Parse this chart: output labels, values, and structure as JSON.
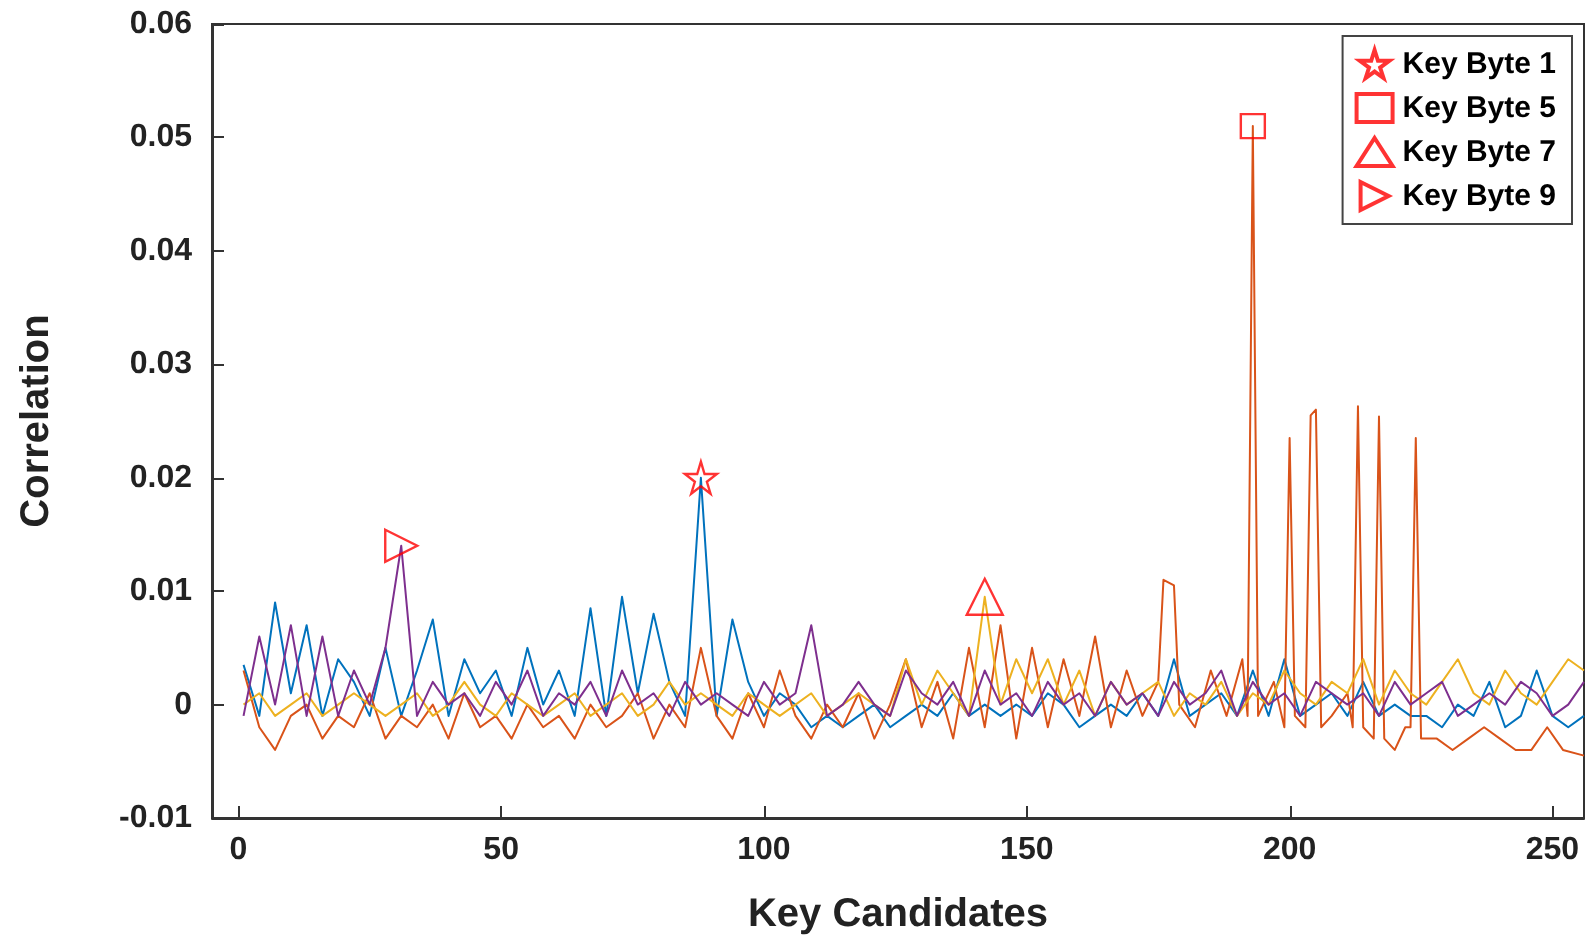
{
  "chart_data": {
    "type": "line",
    "xlabel": "Key Candidates",
    "ylabel": "Correlation",
    "xlim": [
      -5,
      256
    ],
    "xticks": [
      0,
      50,
      100,
      150,
      200,
      250
    ],
    "ylim": [
      -0.01,
      0.06
    ],
    "yticks": [
      -0.01,
      0,
      0.01,
      0.02,
      0.03,
      0.04,
      0.05,
      0.06
    ],
    "grid": false,
    "legend": "top right",
    "series": [
      {
        "type": "line",
        "color": "#0072bd",
        "marker": "none",
        "x": [
          1,
          4,
          7,
          10,
          13,
          16,
          19,
          22,
          25,
          28,
          31,
          34,
          37,
          40,
          43,
          46,
          49,
          52,
          55,
          58,
          61,
          64,
          67,
          70,
          73,
          76,
          79,
          82,
          85,
          88,
          91,
          94,
          97,
          100,
          103,
          106,
          109,
          112,
          115,
          118,
          121,
          124,
          127,
          130,
          133,
          136,
          139,
          142,
          145,
          148,
          151,
          154,
          157,
          160,
          163,
          166,
          169,
          172,
          175,
          178,
          181,
          184,
          187,
          190,
          193,
          196,
          199,
          202,
          205,
          208,
          211,
          214,
          217,
          220,
          223,
          226,
          229,
          232,
          235,
          238,
          241,
          244,
          247,
          250,
          253,
          256
        ],
        "values": [
          0.0035,
          -0.001,
          0.009,
          0.001,
          0.007,
          -0.001,
          0.004,
          0.002,
          -0.001,
          0.005,
          -0.001,
          0.003,
          0.0075,
          -0.001,
          0.004,
          0.001,
          0.003,
          -0.001,
          0.005,
          0,
          0.003,
          -0.001,
          0.0085,
          -0.001,
          0.0095,
          0.001,
          0.008,
          0.002,
          -0.001,
          0.02,
          -0.001,
          0.0075,
          0.002,
          -0.001,
          0.001,
          0,
          -0.002,
          -0.001,
          -0.002,
          -0.001,
          0,
          -0.002,
          -0.001,
          0,
          -0.001,
          0.001,
          -0.001,
          0,
          -0.001,
          0,
          -0.001,
          0.001,
          0,
          -0.002,
          -0.001,
          0,
          -0.001,
          0.001,
          -0.001,
          0.004,
          -0.001,
          0,
          0.001,
          -0.001,
          0.003,
          -0.001,
          0.004,
          -0.001,
          0,
          0.001,
          -0.001,
          0.002,
          -0.001,
          0,
          -0.001,
          -0.001,
          -0.002,
          0,
          -0.001,
          0.002,
          -0.002,
          -0.001,
          0.003,
          -0.001,
          -0.002,
          -0.001
        ]
      },
      {
        "type": "line",
        "color": "#d95319",
        "marker": "none",
        "x": [
          1,
          4,
          7,
          10,
          13,
          16,
          19,
          22,
          25,
          28,
          31,
          34,
          37,
          40,
          43,
          46,
          49,
          52,
          55,
          58,
          61,
          64,
          67,
          70,
          73,
          76,
          79,
          82,
          85,
          88,
          91,
          94,
          97,
          100,
          103,
          106,
          109,
          112,
          115,
          118,
          121,
          124,
          127,
          130,
          133,
          136,
          139,
          142,
          145,
          148,
          151,
          154,
          157,
          160,
          163,
          166,
          169,
          172,
          175,
          176,
          178,
          179,
          182,
          185,
          188,
          191,
          192,
          193,
          194,
          197,
          199,
          200,
          201,
          203,
          204,
          205,
          206,
          208,
          211,
          212,
          213,
          214,
          216,
          217,
          218,
          220,
          222,
          223,
          224,
          225,
          228,
          231,
          234,
          237,
          240,
          243,
          246,
          249,
          252,
          256
        ],
        "values": [
          0.003,
          -0.002,
          -0.004,
          -0.001,
          0,
          -0.003,
          -0.001,
          -0.002,
          0.001,
          -0.003,
          -0.001,
          -0.002,
          0,
          -0.003,
          0.001,
          -0.002,
          -0.001,
          -0.003,
          0,
          -0.002,
          -0.001,
          -0.003,
          0,
          -0.002,
          -0.001,
          0.001,
          -0.003,
          0,
          -0.002,
          0.005,
          -0.001,
          -0.003,
          0.001,
          -0.002,
          0.003,
          -0.001,
          -0.003,
          0,
          -0.002,
          0.001,
          -0.003,
          0,
          0.004,
          -0.002,
          0.002,
          -0.003,
          0.005,
          -0.002,
          0.007,
          -0.003,
          0.005,
          -0.002,
          0.004,
          -0.001,
          0.006,
          -0.002,
          0.003,
          -0.001,
          0.002,
          0.011,
          0.0105,
          0,
          -0.002,
          0.003,
          -0.001,
          0.004,
          -0.001,
          0.051,
          -0.001,
          0.002,
          -0.002,
          0.0235,
          -0.001,
          -0.002,
          0.0255,
          0.026,
          -0.002,
          -0.001,
          0.001,
          -0.002,
          0.0263,
          -0.002,
          -0.003,
          0.0254,
          -0.003,
          -0.004,
          -0.002,
          -0.002,
          0.0235,
          -0.003,
          -0.003,
          -0.004,
          -0.003,
          -0.002,
          -0.003,
          -0.004,
          -0.004,
          -0.002,
          -0.004,
          -0.0045
        ]
      },
      {
        "type": "line",
        "color": "#edb120",
        "marker": "none",
        "x": [
          1,
          4,
          7,
          10,
          13,
          16,
          19,
          22,
          25,
          28,
          31,
          34,
          37,
          40,
          43,
          46,
          49,
          52,
          55,
          58,
          61,
          64,
          67,
          70,
          73,
          76,
          79,
          82,
          85,
          88,
          91,
          94,
          97,
          100,
          103,
          106,
          109,
          112,
          115,
          118,
          121,
          124,
          127,
          130,
          133,
          136,
          139,
          142,
          145,
          148,
          151,
          154,
          157,
          160,
          163,
          166,
          169,
          172,
          175,
          178,
          181,
          184,
          187,
          190,
          193,
          196,
          199,
          202,
          205,
          208,
          211,
          214,
          217,
          220,
          223,
          226,
          229,
          232,
          235,
          238,
          241,
          244,
          247,
          250,
          253,
          256
        ],
        "values": [
          0,
          0.001,
          -0.001,
          0,
          0.001,
          -0.001,
          0,
          0.001,
          0,
          -0.001,
          0,
          0.001,
          -0.001,
          0,
          0.002,
          0,
          -0.001,
          0.001,
          0,
          -0.001,
          0,
          0.001,
          -0.001,
          0,
          0.001,
          -0.001,
          0,
          0.002,
          0,
          0.001,
          0,
          -0.001,
          0.001,
          0,
          -0.001,
          0,
          0.001,
          -0.001,
          0,
          0.001,
          0,
          -0.001,
          0.004,
          0,
          0.003,
          0.001,
          -0.001,
          0.0095,
          0,
          0.004,
          0.001,
          0.004,
          0,
          0.003,
          -0.001,
          0.002,
          0,
          0.001,
          0.002,
          -0.001,
          0.001,
          0,
          0.002,
          -0.001,
          0.001,
          0,
          0.003,
          0.001,
          0,
          0.002,
          0.001,
          0.004,
          0,
          0.003,
          0.001,
          0,
          0.002,
          0.004,
          0.001,
          0,
          0.003,
          0.001,
          0,
          0.002,
          0.004,
          0.003
        ]
      },
      {
        "type": "line",
        "color": "#7e2f8e",
        "marker": "none",
        "x": [
          1,
          4,
          7,
          10,
          13,
          16,
          19,
          22,
          25,
          28,
          31,
          34,
          37,
          40,
          43,
          46,
          49,
          52,
          55,
          58,
          61,
          64,
          67,
          70,
          73,
          76,
          79,
          82,
          85,
          88,
          91,
          94,
          97,
          100,
          103,
          106,
          109,
          112,
          115,
          118,
          121,
          124,
          127,
          130,
          133,
          136,
          139,
          142,
          145,
          148,
          151,
          154,
          157,
          160,
          163,
          166,
          169,
          172,
          175,
          178,
          181,
          184,
          187,
          190,
          193,
          196,
          199,
          202,
          205,
          208,
          211,
          214,
          217,
          220,
          223,
          226,
          229,
          232,
          235,
          238,
          241,
          244,
          247,
          250,
          253,
          256
        ],
        "values": [
          -0.001,
          0.006,
          0,
          0.007,
          -0.001,
          0.006,
          -0.001,
          0.003,
          0,
          0.005,
          0.014,
          -0.001,
          0.002,
          0,
          0.001,
          -0.001,
          0.002,
          0,
          0.003,
          -0.001,
          0.001,
          0,
          0.002,
          -0.001,
          0.003,
          0,
          0.001,
          -0.001,
          0.002,
          0,
          0.001,
          0,
          -0.001,
          0.002,
          0,
          0.001,
          0.007,
          -0.001,
          0,
          0.002,
          0,
          -0.001,
          0.003,
          0.001,
          0,
          0.002,
          -0.001,
          0.003,
          0,
          0.001,
          -0.001,
          0.002,
          0,
          0.001,
          -0.001,
          0.002,
          0,
          0.001,
          -0.001,
          0.002,
          0,
          0.001,
          0.003,
          -0.001,
          0.002,
          0,
          0.001,
          -0.001,
          0.002,
          0.001,
          0,
          0.001,
          -0.001,
          0.002,
          0,
          0.001,
          0.002,
          -0.001,
          0,
          0.001,
          0,
          0.002,
          0.001,
          -0.001,
          0,
          0.002
        ]
      },
      {
        "type": "scatter",
        "name": "Key Byte 1",
        "color": "#ff0000",
        "marker": "star",
        "x": [
          88
        ],
        "values": [
          0.02
        ]
      },
      {
        "type": "scatter",
        "name": "Key Byte 5",
        "color": "#ff0000",
        "marker": "square",
        "x": [
          193
        ],
        "values": [
          0.051
        ]
      },
      {
        "type": "scatter",
        "name": "Key Byte 7",
        "color": "#ff0000",
        "marker": "triangle",
        "x": [
          142
        ],
        "values": [
          0.0095
        ]
      },
      {
        "type": "scatter",
        "name": "Key Byte 9",
        "color": "#ff0000",
        "marker": "triangle-right",
        "x": [
          31
        ],
        "values": [
          0.014
        ]
      }
    ]
  }
}
